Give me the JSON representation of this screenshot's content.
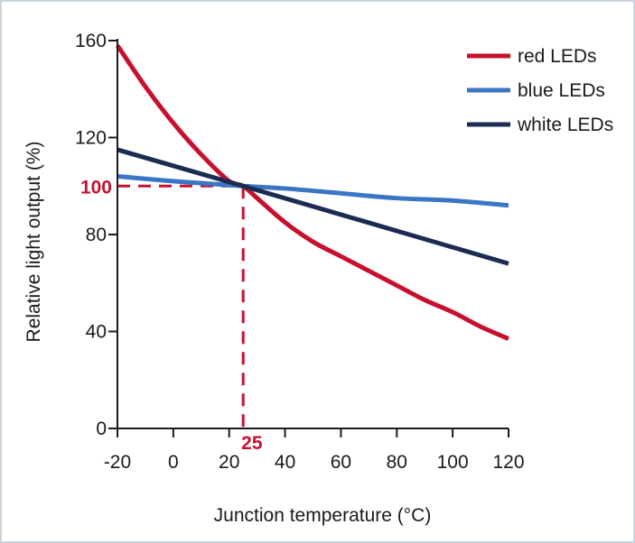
{
  "chart_data": {
    "type": "line",
    "xlabel": "Junction temperature (°C)",
    "ylabel": "Relative light output (%)",
    "xlim": [
      -20,
      120
    ],
    "ylim": [
      0,
      160
    ],
    "xticks": [
      -20,
      0,
      20,
      40,
      60,
      80,
      100,
      120
    ],
    "yticks": [
      0,
      40,
      80,
      120,
      160
    ],
    "grid": false,
    "legend_position": "top-right",
    "series": [
      {
        "name": "red LEDs",
        "color": "#c8102e",
        "x": [
          -20,
          -10,
          0,
          10,
          20,
          25,
          30,
          40,
          50,
          60,
          70,
          80,
          90,
          100,
          110,
          120
        ],
        "y": [
          158,
          141,
          126,
          113,
          102,
          100,
          95,
          85,
          77,
          71,
          65,
          59,
          53,
          48,
          42,
          37
        ]
      },
      {
        "name": "blue LEDs",
        "color": "#3a76c4",
        "x": [
          -20,
          0,
          25,
          40,
          60,
          80,
          100,
          120
        ],
        "y": [
          104,
          102,
          100,
          99,
          97,
          95,
          94,
          92
        ]
      },
      {
        "name": "white LEDs",
        "color": "#1b2b52",
        "x": [
          -20,
          25,
          120
        ],
        "y": [
          115,
          100,
          68
        ]
      }
    ],
    "reference": {
      "x": 25,
      "y": 100,
      "x_label": "25",
      "y_label": "100",
      "color": "#c8102e"
    }
  }
}
